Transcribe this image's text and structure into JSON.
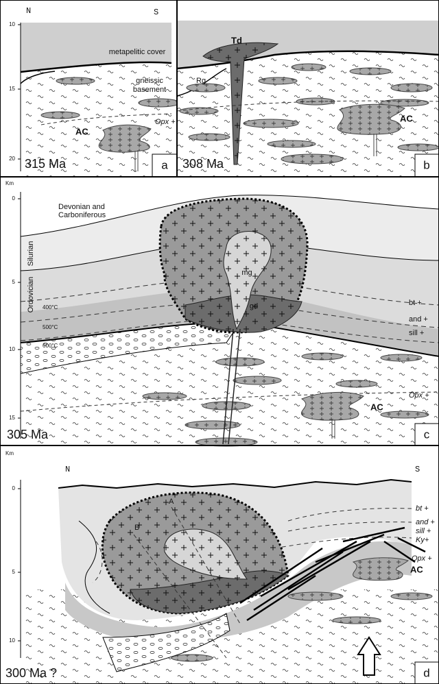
{
  "panel_a": {
    "north": "N",
    "south": "S",
    "depth_ticks": [
      "10",
      "15",
      "20"
    ],
    "cover": "metapelitic cover",
    "basement": [
      "gneissic",
      "basement"
    ],
    "isograd": "Opx +",
    "complex": "AC",
    "age": "315 Ma",
    "letter": "a"
  },
  "panel_b": {
    "intrusion": "Td",
    "rg": "Rg",
    "complex": "AC",
    "age": "308 Ma",
    "letter": "b"
  },
  "panel_c": {
    "unit": "Km",
    "depth_ticks": [
      "0",
      "5",
      "10",
      "15"
    ],
    "cover": [
      "Devonian and",
      "Carboniferous"
    ],
    "strata": [
      "Silurian",
      "Ordovician"
    ],
    "isotherms": [
      "400°C",
      "500°C",
      "600°C"
    ],
    "pluton_core": "mg",
    "pluton_rim": "gd",
    "isograds": [
      "bt +",
      "and +",
      "sill +",
      "Opx +"
    ],
    "complex": "AC",
    "age": "305 Ma",
    "letter": "c"
  },
  "panel_d": {
    "unit": "Km",
    "north": "N",
    "south": "S",
    "depth_ticks": [
      "0",
      "5",
      "10"
    ],
    "sections": [
      "A",
      "B"
    ],
    "isograds": [
      "bt +",
      "and +",
      "sill +",
      "Ky+",
      "Opx +"
    ],
    "complex": "AC",
    "age": "300 Ma ?",
    "letter": "d"
  }
}
